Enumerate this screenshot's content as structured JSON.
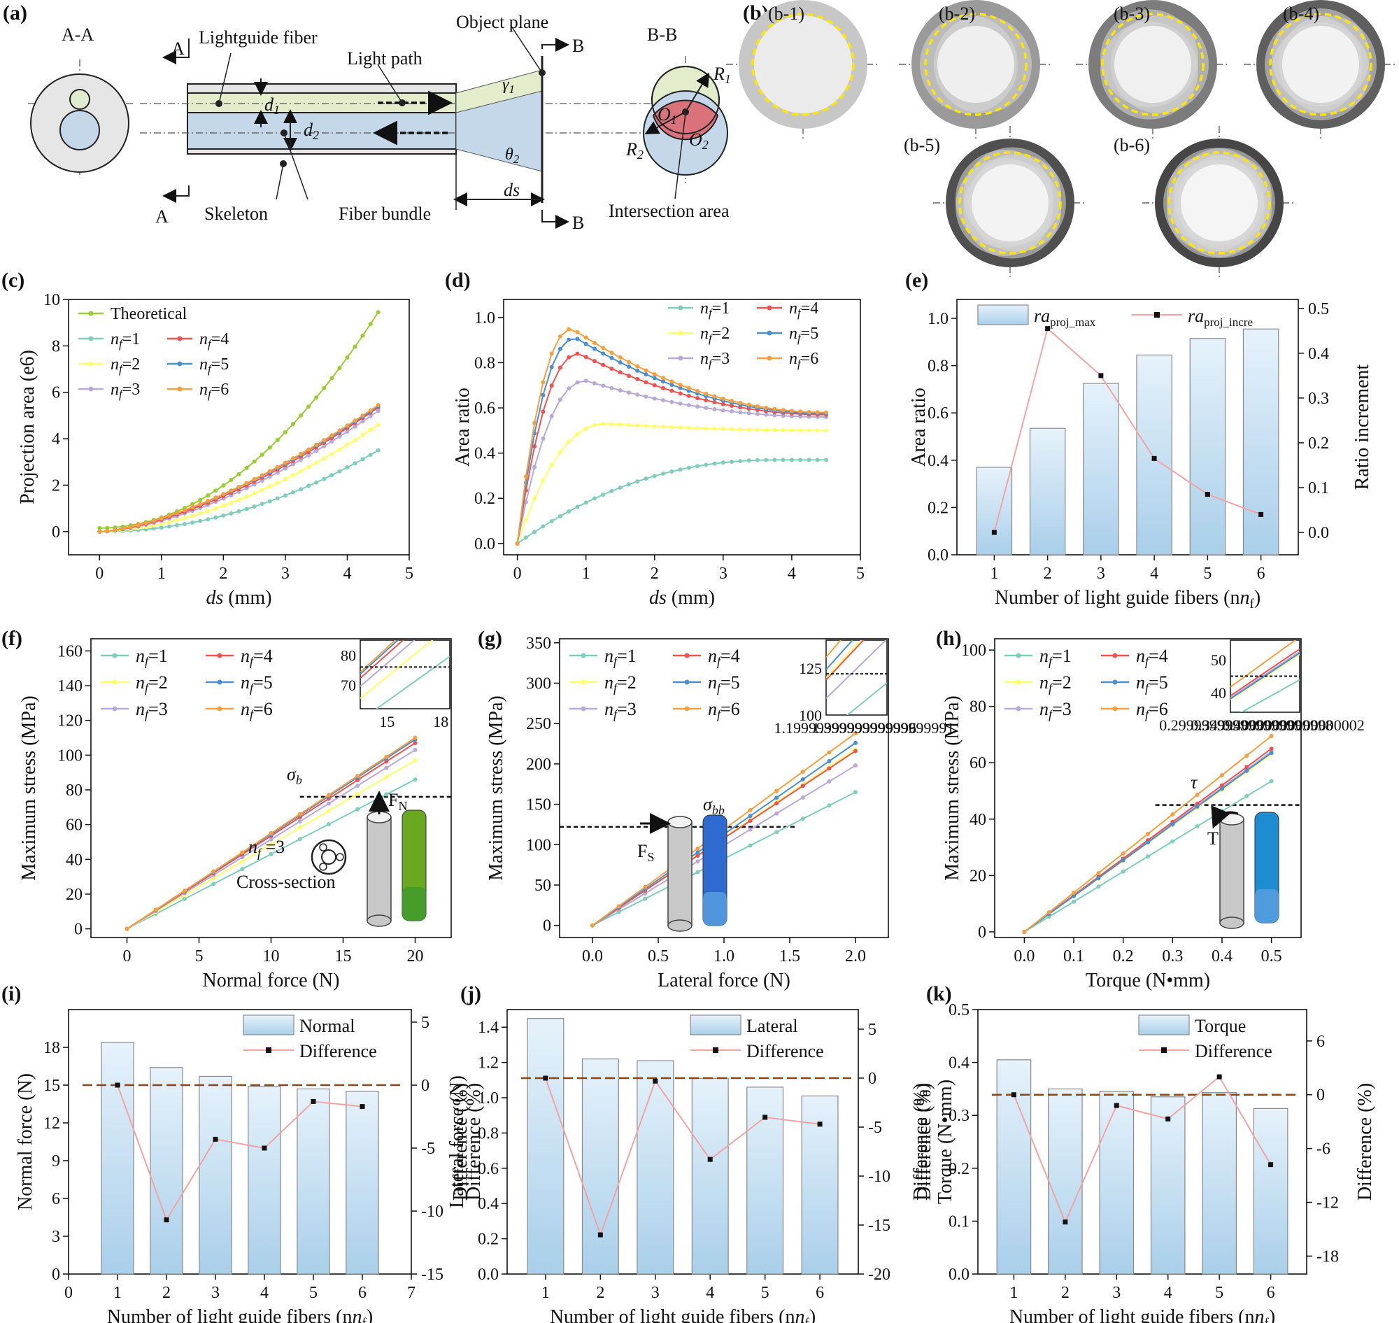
{
  "figure": {
    "panel_a": {
      "tag": "(a)",
      "section_aa": "A-A",
      "section_bb": "B-B",
      "label_A": "A",
      "label_B": "B",
      "lightguide_fiber": "Lightguide fiber",
      "light_path": "Light path",
      "object_plane": "Object plane",
      "skeleton": "Skeleton",
      "fiber_bundle": "Fiber bundle",
      "ds": "ds",
      "d1": "d",
      "d1_sub": "1",
      "d2": "d",
      "d2_sub": "2",
      "gamma1": "γ",
      "gamma1_sub": "1",
      "theta2": "θ",
      "theta2_sub": "2",
      "R1": "R",
      "R1_sub": "1",
      "R2": "R",
      "R2_sub": "2",
      "O1": "O",
      "O1_sub": "1",
      "O2": "O",
      "O2_sub": "2",
      "intersection_area": "Intersection area"
    },
    "panel_b": {
      "tag": "(b)",
      "subpanels": [
        "(b-1)",
        "(b-2)",
        "(b-3)",
        "(b-4)",
        "(b-5)",
        "(b-6)"
      ]
    },
    "colors": {
      "nf1": "#7fcdbb",
      "nf2": "#ffff66",
      "nf3": "#b8a9d9",
      "nf4": "#ef5350",
      "nf5": "#4a8fd1",
      "nf6": "#f5a040",
      "theoretical": "#9acd32",
      "bar_top": "#e6f2fb",
      "bar_bottom": "#a9cfea",
      "diff_line": "#f4a3a3",
      "zero_line": "#8b4513"
    }
  },
  "chart_data": [
    {
      "id": "c",
      "tag": "(c)",
      "type": "line",
      "xlabel": "ds",
      "xlabel_unit": " (mm)",
      "ylabel": "Projection area (e6)",
      "xlim": [
        -0.5,
        5
      ],
      "ylim": [
        -1,
        10
      ],
      "xticks": [
        0,
        1,
        2,
        3,
        4,
        5
      ],
      "yticks": [
        0,
        2,
        4,
        6,
        8,
        10
      ],
      "legend": [
        "Theoretical",
        "nf=1",
        "nf=2",
        "nf=3",
        "nf=4",
        "nf=5",
        "nf=6"
      ],
      "series": [
        {
          "name": "Theoretical",
          "color": "#9acd32",
          "model": "quad",
          "y0": 0.15,
          "y1": 9.45,
          "p": 2.0
        },
        {
          "name": "nf=1",
          "color": "#7fcdbb",
          "model": "quad",
          "y0": 0.0,
          "y1": 3.5,
          "p": 2.0
        },
        {
          "name": "nf=2",
          "color": "#ffff66",
          "model": "quad",
          "y0": 0.0,
          "y1": 4.6,
          "p": 1.75
        },
        {
          "name": "nf=3",
          "color": "#b8a9d9",
          "model": "quad",
          "y0": 0.0,
          "y1": 5.2,
          "p": 1.6
        },
        {
          "name": "nf=4",
          "color": "#ef5350",
          "model": "quad",
          "y0": 0.0,
          "y1": 5.35,
          "p": 1.55
        },
        {
          "name": "nf=5",
          "color": "#4a8fd1",
          "model": "quad",
          "y0": 0.0,
          "y1": 5.4,
          "p": 1.5
        },
        {
          "name": "nf=6",
          "color": "#f5a040",
          "model": "quad",
          "y0": 0.0,
          "y1": 5.45,
          "p": 1.5
        }
      ]
    },
    {
      "id": "d",
      "tag": "(d)",
      "type": "line",
      "xlabel": "ds",
      "xlabel_unit": " (mm)",
      "ylabel": "Area ratio",
      "xlim": [
        -0.2,
        5
      ],
      "ylim": [
        -0.05,
        1.08
      ],
      "xticks": [
        0,
        1,
        2,
        3,
        4,
        5
      ],
      "yticks": [
        0.0,
        0.2,
        0.4,
        0.6,
        0.8,
        1.0
      ],
      "legend": [
        "nf=1",
        "nf=2",
        "nf=3",
        "nf=4",
        "nf=5",
        "nf=6"
      ],
      "series": [
        {
          "name": "nf=1",
          "color": "#7fcdbb",
          "model": "peak",
          "peak_x": 3.8,
          "peak_y": 0.37,
          "end_y": 0.37
        },
        {
          "name": "nf=2",
          "color": "#ffff66",
          "model": "peak",
          "peak_x": 1.3,
          "peak_y": 0.53,
          "end_y": 0.5
        },
        {
          "name": "nf=3",
          "color": "#b8a9d9",
          "model": "peak",
          "peak_x": 1.0,
          "peak_y": 0.72,
          "end_y": 0.56
        },
        {
          "name": "nf=4",
          "color": "#ef5350",
          "model": "peak",
          "peak_x": 0.9,
          "peak_y": 0.84,
          "end_y": 0.57
        },
        {
          "name": "nf=5",
          "color": "#4a8fd1",
          "model": "peak",
          "peak_x": 0.85,
          "peak_y": 0.91,
          "end_y": 0.575
        },
        {
          "name": "nf=6",
          "color": "#f5a040",
          "model": "peak",
          "peak_x": 0.8,
          "peak_y": 0.95,
          "end_y": 0.58
        }
      ]
    },
    {
      "id": "e",
      "tag": "(e)",
      "type": "bar",
      "xlabel": "Number of light guide fibers (n",
      "xlabel_sub": "f",
      "xlabel_end": ")",
      "ylabel": "Area ratio",
      "y2label": "Ratio increment",
      "categories": [
        1,
        2,
        3,
        4,
        5,
        6
      ],
      "xlim": [
        0.3,
        6.7
      ],
      "ylim": [
        0,
        1.08
      ],
      "y2lim": [
        -0.05,
        0.52
      ],
      "yticks": [
        0.0,
        0.2,
        0.4,
        0.6,
        0.8,
        1.0
      ],
      "y2ticks": [
        0.0,
        0.1,
        0.2,
        0.3,
        0.4,
        0.5
      ],
      "bar_label": "ra",
      "bar_label_sub": "proj_max",
      "line_label": "ra",
      "line_label_sub": "proj_incre",
      "bars": [
        0.37,
        0.535,
        0.725,
        0.845,
        0.915,
        0.955
      ],
      "line": [
        0.0,
        0.455,
        0.35,
        0.165,
        0.085,
        0.04
      ]
    },
    {
      "id": "f",
      "tag": "(f)",
      "type": "line",
      "xlabel": "Normal force (N)",
      "ylabel": "Maximum stress (MPa)",
      "xlim": [
        -2.5,
        22.5
      ],
      "ylim": [
        -5,
        167
      ],
      "xticks": [
        0,
        5,
        10,
        15,
        20
      ],
      "yticks": [
        0,
        20,
        40,
        60,
        80,
        100,
        120,
        140,
        160
      ],
      "x_end": 20,
      "legend": [
        "nf=1",
        "nf=4",
        "nf=2",
        "nf=5",
        "nf=3",
        "nf=6"
      ],
      "threshold": {
        "value": 76,
        "from": 12,
        "to": 22.5,
        "label": "σ",
        "label_sub": "b"
      },
      "force_label": "F",
      "force_label_sub": "N",
      "annot": "n",
      "annot_sub": "f",
      "annot_val": " =3",
      "cross_section": "Cross-section",
      "series": [
        {
          "name": "nf=1",
          "color": "#7fcdbb",
          "slope": 4.3
        },
        {
          "name": "nf=2",
          "color": "#ffff66",
          "slope": 4.85
        },
        {
          "name": "nf=3",
          "color": "#b8a9d9",
          "slope": 5.15
        },
        {
          "name": "nf=4",
          "color": "#ef5350",
          "slope": 5.35
        },
        {
          "name": "nf=5",
          "color": "#4a8fd1",
          "slope": 5.45
        },
        {
          "name": "nf=6",
          "color": "#f5a040",
          "slope": 5.5
        }
      ],
      "inset": {
        "xlim": [
          13.5,
          18.5
        ],
        "ylim": [
          62,
          85
        ],
        "xticks": [
          15,
          18
        ],
        "yticks": [
          70,
          80
        ]
      }
    },
    {
      "id": "g",
      "tag": "(g)",
      "type": "line",
      "xlabel": "Lateral force (N)",
      "ylabel": "Maximum stress (MPa)",
      "xlim": [
        -0.25,
        2.25
      ],
      "ylim": [
        -15,
        355
      ],
      "xticks": [
        0.0,
        0.5,
        1.0,
        1.5,
        2.0
      ],
      "yticks": [
        0,
        50,
        100,
        150,
        200,
        250,
        300,
        350
      ],
      "x_end": 2.0,
      "legend": [
        "nf=1",
        "nf=4",
        "nf=2",
        "nf=5",
        "nf=3",
        "nf=6"
      ],
      "threshold": {
        "value": 122,
        "from": -0.25,
        "to": 1.55,
        "label": "σ",
        "label_sub": "bb"
      },
      "force_label": "F",
      "force_label_sub": "S",
      "series": [
        {
          "name": "nf=1",
          "color": "#7fcdbb",
          "slope": 82.5
        },
        {
          "name": "nf=2",
          "color": "#ffff66",
          "slope": 109
        },
        {
          "name": "nf=3",
          "color": "#b8a9d9",
          "slope": 99
        },
        {
          "name": "nf=4",
          "color": "#ef5350",
          "slope": 108
        },
        {
          "name": "nf=5",
          "color": "#4a8fd1",
          "slope": 113
        },
        {
          "name": "nf=6",
          "color": "#f5a040",
          "slope": 119
        }
      ],
      "inset": {
        "xlim": [
          1.1,
          1.42
        ],
        "ylim": [
          100,
          140
        ],
        "xticks": [
          1.2,
          1.4
        ],
        "yticks": [
          100,
          125
        ]
      }
    },
    {
      "id": "h",
      "tag": "(h)",
      "type": "line",
      "xlabel": "Torque (N•mm)",
      "ylabel": "Maximum stress (MPa)",
      "xlim": [
        -0.06,
        0.56
      ],
      "ylim": [
        -2,
        104
      ],
      "xticks": [
        0.0,
        0.1,
        0.2,
        0.3,
        0.4,
        0.5
      ],
      "yticks": [
        0,
        20,
        40,
        60,
        80,
        100
      ],
      "x_end": 0.5,
      "legend": [
        "nf=1",
        "nf=4",
        "nf=2",
        "nf=5",
        "nf=3",
        "nf=6"
      ],
      "threshold": {
        "value": 45,
        "from": 0.265,
        "to": 0.56,
        "label": "τ",
        "label_sub": ""
      },
      "force_label": "T",
      "force_label_sub": "",
      "series": [
        {
          "name": "nf=1",
          "color": "#7fcdbb",
          "slope": 107
        },
        {
          "name": "nf=2",
          "color": "#ffff66",
          "slope": 126
        },
        {
          "name": "nf=3",
          "color": "#b8a9d9",
          "slope": 128
        },
        {
          "name": "nf=4",
          "color": "#ef5350",
          "slope": 130
        },
        {
          "name": "nf=5",
          "color": "#4a8fd1",
          "slope": 127
        },
        {
          "name": "nf=6",
          "color": "#f5a040",
          "slope": 139
        }
      ],
      "inset": {
        "xlim": [
          0.3,
          0.41
        ],
        "ylim": [
          34,
          56
        ],
        "xticks": [
          0.3,
          0.35,
          0.4
        ],
        "yticks": [
          40,
          50
        ]
      }
    },
    {
      "id": "i",
      "tag": "(i)",
      "type": "bar",
      "xlabel": "Number of light guide fibers (n",
      "xlabel_sub": "f",
      "xlabel_end": ")",
      "ylabel": "Normal force (N)",
      "y2label": "Difference (%)",
      "categories": [
        1,
        2,
        3,
        4,
        5,
        6
      ],
      "xlim": [
        0,
        7
      ],
      "xticks": [
        0,
        1,
        2,
        3,
        4,
        5,
        6,
        7
      ],
      "ylim": [
        0,
        21
      ],
      "y2lim": [
        -15,
        6
      ],
      "yticks": [
        0,
        3,
        6,
        9,
        12,
        15,
        18
      ],
      "y2ticks": [
        -15,
        -10,
        -5,
        0,
        5
      ],
      "bar_label": "Normal",
      "line_label": "Difference",
      "bars": [
        18.4,
        16.4,
        15.7,
        14.9,
        14.7,
        14.5
      ],
      "line": [
        0.0,
        -10.7,
        -4.3,
        -5.0,
        -1.3,
        -1.7
      ],
      "ref": 0
    },
    {
      "id": "j",
      "tag": "(j)",
      "type": "bar",
      "xlabel": "Number of light guide fibers (n",
      "xlabel_sub": "f",
      "xlabel_end": ")",
      "ylabel": "Lateral force (N)",
      "y2label": "Difference (%)",
      "categories": [
        1,
        2,
        3,
        4,
        5,
        6
      ],
      "xlim": [
        0.3,
        6.7
      ],
      "xticks": [
        1,
        2,
        3,
        4,
        5,
        6
      ],
      "ylim": [
        0,
        1.5
      ],
      "y2lim": [
        -20,
        7
      ],
      "yticks": [
        0.0,
        0.2,
        0.4,
        0.6,
        0.8,
        1.0,
        1.2,
        1.4
      ],
      "y2ticks": [
        -20,
        -15,
        -10,
        -5,
        0,
        5
      ],
      "bar_label": "Lateral",
      "line_label": "Difference",
      "bars": [
        1.45,
        1.22,
        1.21,
        1.11,
        1.06,
        1.01
      ],
      "line": [
        0.0,
        -16.0,
        -0.3,
        -8.3,
        -4.0,
        -4.7
      ],
      "ref": 0
    },
    {
      "id": "k",
      "tag": "(k)",
      "type": "bar",
      "xlabel": "Number of light guide fibers (n",
      "xlabel_sub": "f",
      "xlabel_end": ")",
      "ylabel": "Torque (N•mm)",
      "y2label": "Difference (%)",
      "categories": [
        1,
        2,
        3,
        4,
        5,
        6
      ],
      "xlim": [
        0.3,
        6.7
      ],
      "xticks": [
        1,
        2,
        3,
        4,
        5,
        6
      ],
      "ylim": [
        0,
        0.5
      ],
      "y2lim": [
        -20,
        9.5
      ],
      "yticks": [
        0.0,
        0.1,
        0.2,
        0.3,
        0.4,
        0.5
      ],
      "y2ticks": [
        -18,
        -12,
        -6,
        0,
        6
      ],
      "bar_label": "Torque",
      "line_label": "Difference",
      "bars": [
        0.405,
        0.35,
        0.345,
        0.335,
        0.343,
        0.313
      ],
      "line": [
        0.0,
        -14.2,
        -1.2,
        -2.7,
        2.0,
        -7.8
      ],
      "ref": 0
    }
  ]
}
